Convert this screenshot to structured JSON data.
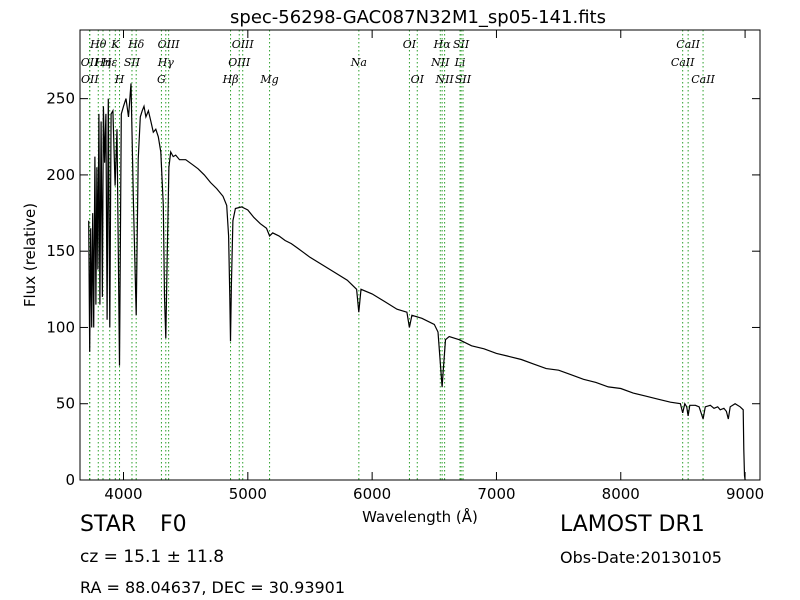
{
  "chart_data": {
    "type": "line",
    "title": "spec-56298-GAC087N32M1_sp05-141.fits",
    "xlabel": "Wavelength (Å)",
    "ylabel": "Flux (relative)",
    "xlim": [
      3650,
      9120
    ],
    "ylim": [
      0,
      295
    ],
    "x_ticks": [
      4000,
      5000,
      6000,
      7000,
      8000,
      9000
    ],
    "y_ticks": [
      0,
      50,
      100,
      150,
      200,
      250
    ],
    "grid": false,
    "series": [
      {
        "color": "#000000",
        "points": [
          [
            3720,
            170
          ],
          [
            3728,
            84
          ],
          [
            3736,
            165
          ],
          [
            3744,
            100
          ],
          [
            3752,
            175
          ],
          [
            3760,
            100
          ],
          [
            3770,
            212
          ],
          [
            3778,
            115
          ],
          [
            3786,
            205
          ],
          [
            3794,
            138
          ],
          [
            3802,
            240
          ],
          [
            3810,
            115
          ],
          [
            3820,
            235
          ],
          [
            3830,
            120
          ],
          [
            3838,
            245
          ],
          [
            3848,
            208
          ],
          [
            3858,
            240
          ],
          [
            3868,
            105
          ],
          [
            3878,
            250
          ],
          [
            3890,
            100
          ],
          [
            3900,
            240
          ],
          [
            3915,
            242
          ],
          [
            3932,
            193
          ],
          [
            3948,
            230
          ],
          [
            3968,
            75
          ],
          [
            3982,
            240
          ],
          [
            4000,
            245
          ],
          [
            4020,
            250
          ],
          [
            4040,
            238
          ],
          [
            4060,
            260
          ],
          [
            4080,
            180
          ],
          [
            4102,
            108
          ],
          [
            4118,
            210
          ],
          [
            4135,
            238
          ],
          [
            4150,
            242
          ],
          [
            4165,
            245
          ],
          [
            4180,
            238
          ],
          [
            4200,
            242
          ],
          [
            4220,
            235
          ],
          [
            4240,
            228
          ],
          [
            4260,
            230
          ],
          [
            4280,
            225
          ],
          [
            4300,
            215
          ],
          [
            4320,
            180
          ],
          [
            4330,
            120
          ],
          [
            4340,
            93
          ],
          [
            4352,
            150
          ],
          [
            4365,
            205
          ],
          [
            4380,
            215
          ],
          [
            4400,
            212
          ],
          [
            4420,
            213
          ],
          [
            4450,
            210
          ],
          [
            4500,
            210
          ],
          [
            4550,
            207
          ],
          [
            4600,
            204
          ],
          [
            4650,
            200
          ],
          [
            4700,
            195
          ],
          [
            4750,
            191
          ],
          [
            4800,
            186
          ],
          [
            4830,
            180
          ],
          [
            4845,
            160
          ],
          [
            4855,
            120
          ],
          [
            4861,
            91
          ],
          [
            4868,
            128
          ],
          [
            4880,
            170
          ],
          [
            4900,
            178
          ],
          [
            4950,
            179
          ],
          [
            5000,
            177
          ],
          [
            5050,
            172
          ],
          [
            5100,
            168
          ],
          [
            5150,
            165
          ],
          [
            5175,
            160
          ],
          [
            5200,
            162
          ],
          [
            5250,
            160
          ],
          [
            5300,
            157
          ],
          [
            5350,
            155
          ],
          [
            5400,
            152
          ],
          [
            5450,
            149
          ],
          [
            5500,
            146
          ],
          [
            5600,
            141
          ],
          [
            5700,
            136
          ],
          [
            5800,
            131
          ],
          [
            5875,
            125
          ],
          [
            5893,
            110
          ],
          [
            5910,
            125
          ],
          [
            6000,
            122
          ],
          [
            6100,
            117
          ],
          [
            6200,
            112
          ],
          [
            6280,
            110
          ],
          [
            6300,
            100
          ],
          [
            6320,
            108
          ],
          [
            6400,
            106
          ],
          [
            6500,
            102
          ],
          [
            6530,
            97
          ],
          [
            6550,
            75
          ],
          [
            6563,
            61
          ],
          [
            6575,
            75
          ],
          [
            6590,
            92
          ],
          [
            6620,
            94
          ],
          [
            6700,
            92
          ],
          [
            6800,
            88
          ],
          [
            6900,
            86
          ],
          [
            7000,
            83
          ],
          [
            7100,
            81
          ],
          [
            7200,
            79
          ],
          [
            7300,
            76
          ],
          [
            7400,
            73
          ],
          [
            7500,
            72
          ],
          [
            7600,
            69
          ],
          [
            7700,
            66
          ],
          [
            7800,
            64
          ],
          [
            7900,
            61
          ],
          [
            8000,
            60
          ],
          [
            8100,
            57
          ],
          [
            8200,
            55
          ],
          [
            8300,
            53
          ],
          [
            8400,
            51
          ],
          [
            8480,
            50
          ],
          [
            8498,
            44
          ],
          [
            8515,
            50
          ],
          [
            8530,
            48
          ],
          [
            8542,
            42
          ],
          [
            8555,
            49
          ],
          [
            8600,
            49
          ],
          [
            8630,
            48
          ],
          [
            8662,
            40
          ],
          [
            8680,
            48
          ],
          [
            8720,
            49
          ],
          [
            8750,
            47
          ],
          [
            8780,
            48
          ],
          [
            8800,
            46
          ],
          [
            8830,
            47
          ],
          [
            8850,
            45
          ],
          [
            8865,
            40
          ],
          [
            8880,
            48
          ],
          [
            8920,
            50
          ],
          [
            8960,
            48
          ],
          [
            8985,
            46
          ],
          [
            8990,
            20
          ],
          [
            8995,
            3
          ],
          [
            9000,
            0
          ]
        ]
      }
    ],
    "line_markers": [
      {
        "label": "Hθ",
        "x": 3797,
        "row": 1
      },
      {
        "label": "OII",
        "x": 3727,
        "row": 2
      },
      {
        "label": "Hη",
        "x": 3835,
        "row": 2
      },
      {
        "label": "OII",
        "x": 3729,
        "row": 3
      },
      {
        "label": "Hε",
        "x": 3889,
        "row": 2
      },
      {
        "label": "K",
        "x": 3934,
        "row": 1
      },
      {
        "label": "SII",
        "x": 4068,
        "row": 2
      },
      {
        "label": "H",
        "x": 3968,
        "row": 3
      },
      {
        "label": "Hδ",
        "x": 4102,
        "row": 1
      },
      {
        "label": "OIII",
        "x": 4363,
        "row": 1
      },
      {
        "label": "Hγ",
        "x": 4340,
        "row": 2
      },
      {
        "label": "G",
        "x": 4305,
        "row": 3
      },
      {
        "label": "OIII",
        "x": 4959,
        "row": 1
      },
      {
        "label": "OIII",
        "x": 4931,
        "row": 2
      },
      {
        "label": "Hβ",
        "x": 4861,
        "row": 3
      },
      {
        "label": "Mg",
        "x": 5175,
        "row": 3
      },
      {
        "label": "Na",
        "x": 5893,
        "row": 2
      },
      {
        "label": "OI",
        "x": 6300,
        "row": 1
      },
      {
        "label": "OI",
        "x": 6363,
        "row": 3
      },
      {
        "label": "Hα",
        "x": 6563,
        "row": 1
      },
      {
        "label": "SII",
        "x": 6716,
        "row": 1
      },
      {
        "label": "NII",
        "x": 6548,
        "row": 2
      },
      {
        "label": "Li",
        "x": 6707,
        "row": 2
      },
      {
        "label": "NII",
        "x": 6583,
        "row": 3
      },
      {
        "label": "SII",
        "x": 6731,
        "row": 3
      },
      {
        "label": "CaII",
        "x": 8542,
        "row": 1
      },
      {
        "label": "CaII",
        "x": 8498,
        "row": 2
      },
      {
        "label": "CaII",
        "x": 8662,
        "row": 3
      }
    ],
    "marker_color": "#2ca02c"
  },
  "info": {
    "class": "STAR",
    "subclass": "F0",
    "survey": "LAMOST DR1",
    "redshift": "cz = 15.1 ± 11.8",
    "obs_date": "Obs-Date:20130105",
    "coords": "RA = 88.04637, DEC = 30.93901"
  }
}
